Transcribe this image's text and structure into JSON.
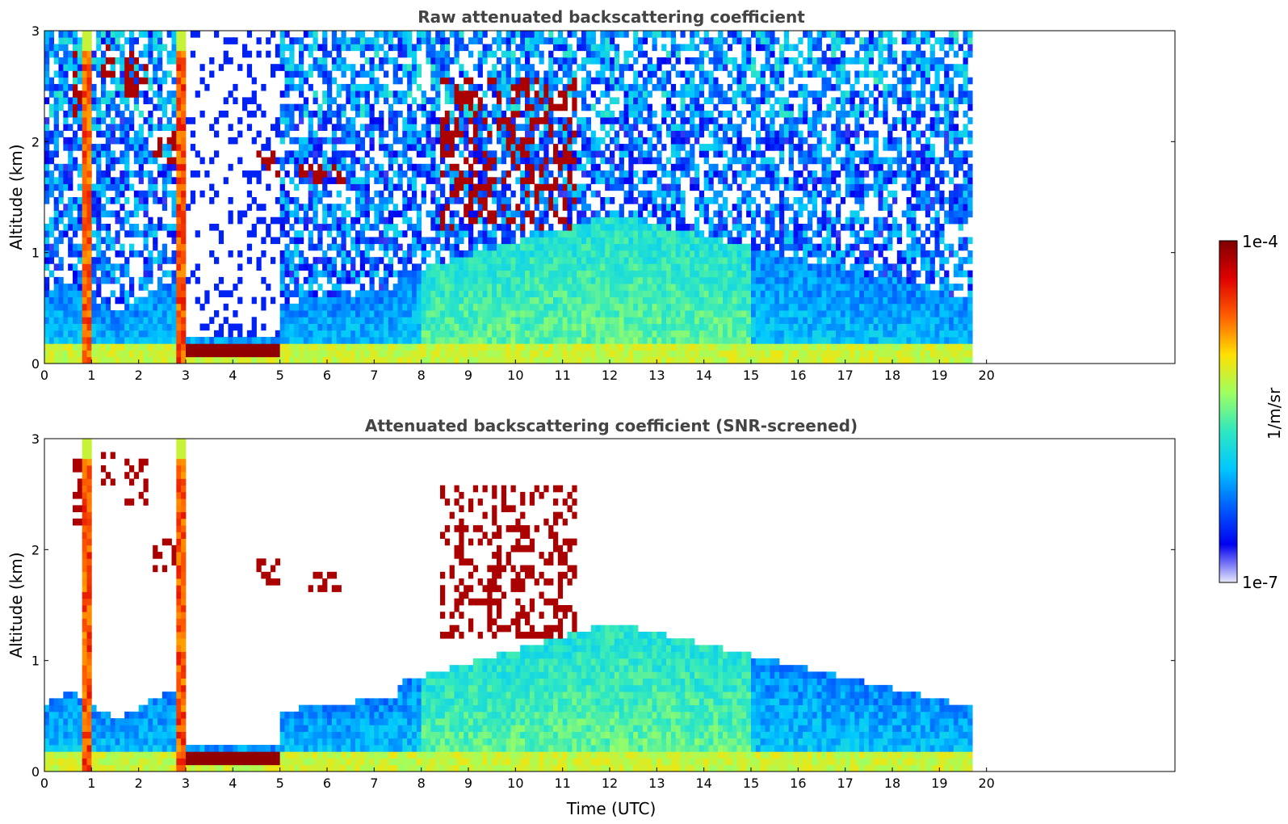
{
  "chart_data": [
    {
      "type": "heatmap",
      "title": "Raw attenuated backscattering coefficient",
      "xlabel": "",
      "ylabel": "Altitude (km)",
      "xlim": [
        0,
        24
      ],
      "ylim": [
        0,
        3
      ],
      "x_ticks": [
        "0",
        "1",
        "2",
        "3",
        "4",
        "5",
        "6",
        "7",
        "8",
        "9",
        "10",
        "11",
        "12",
        "13",
        "14",
        "15",
        "16",
        "17",
        "18",
        "19",
        "20"
      ],
      "y_ticks": [
        "0",
        "1",
        "2",
        "3"
      ],
      "data_end_time": 19.7,
      "screened": false,
      "features": {
        "low_aerosol_layer_top_km": 0.2,
        "boundary_layer_top_km": [
          0.6,
          1.3
        ],
        "cloud_layer_hours": [
          3.0,
          5.0
        ],
        "cloud_layer_altitude_km": 0.12,
        "vertical_streaks_hours": [
          0.9,
          2.9
        ],
        "elevated_clouds": [
          {
            "t": [
              0.6,
              1.0
            ],
            "z": [
              2.2,
              2.8
            ]
          },
          {
            "t": [
              1.2,
              1.5
            ],
            "z": [
              2.6,
              2.9
            ]
          },
          {
            "t": [
              1.7,
              2.2
            ],
            "z": [
              2.4,
              2.8
            ]
          },
          {
            "t": [
              2.3,
              2.8
            ],
            "z": [
              1.8,
              2.1
            ]
          },
          {
            "t": [
              4.5,
              5.0
            ],
            "z": [
              1.7,
              1.9
            ]
          },
          {
            "t": [
              5.4,
              6.4
            ],
            "z": [
              1.6,
              1.8
            ]
          },
          {
            "t": [
              8.4,
              11.3
            ],
            "z": [
              1.2,
              2.6
            ]
          }
        ]
      }
    },
    {
      "type": "heatmap",
      "title": "Attenuated backscattering coefficient (SNR-screened)",
      "xlabel": "Time (UTC)",
      "ylabel": "Altitude (km)",
      "xlim": [
        0,
        24
      ],
      "ylim": [
        0,
        3
      ],
      "x_ticks": [
        "0",
        "1",
        "2",
        "3",
        "4",
        "5",
        "6",
        "7",
        "8",
        "9",
        "10",
        "11",
        "12",
        "13",
        "14",
        "15",
        "16",
        "17",
        "18",
        "19",
        "20"
      ],
      "y_ticks": [
        "0",
        "1",
        "2",
        "3"
      ],
      "data_end_time": 19.7,
      "screened": true
    }
  ],
  "colorbar": {
    "label": "1/m/sr",
    "max_label": "1e-4",
    "min_label": "1e-7",
    "colormap": "jet",
    "colors": [
      "#e8e8fa",
      "#0000f0",
      "#0060ff",
      "#00c8ff",
      "#30e8c0",
      "#a0ff60",
      "#ffe000",
      "#ff6000",
      "#e00000",
      "#800000"
    ]
  }
}
